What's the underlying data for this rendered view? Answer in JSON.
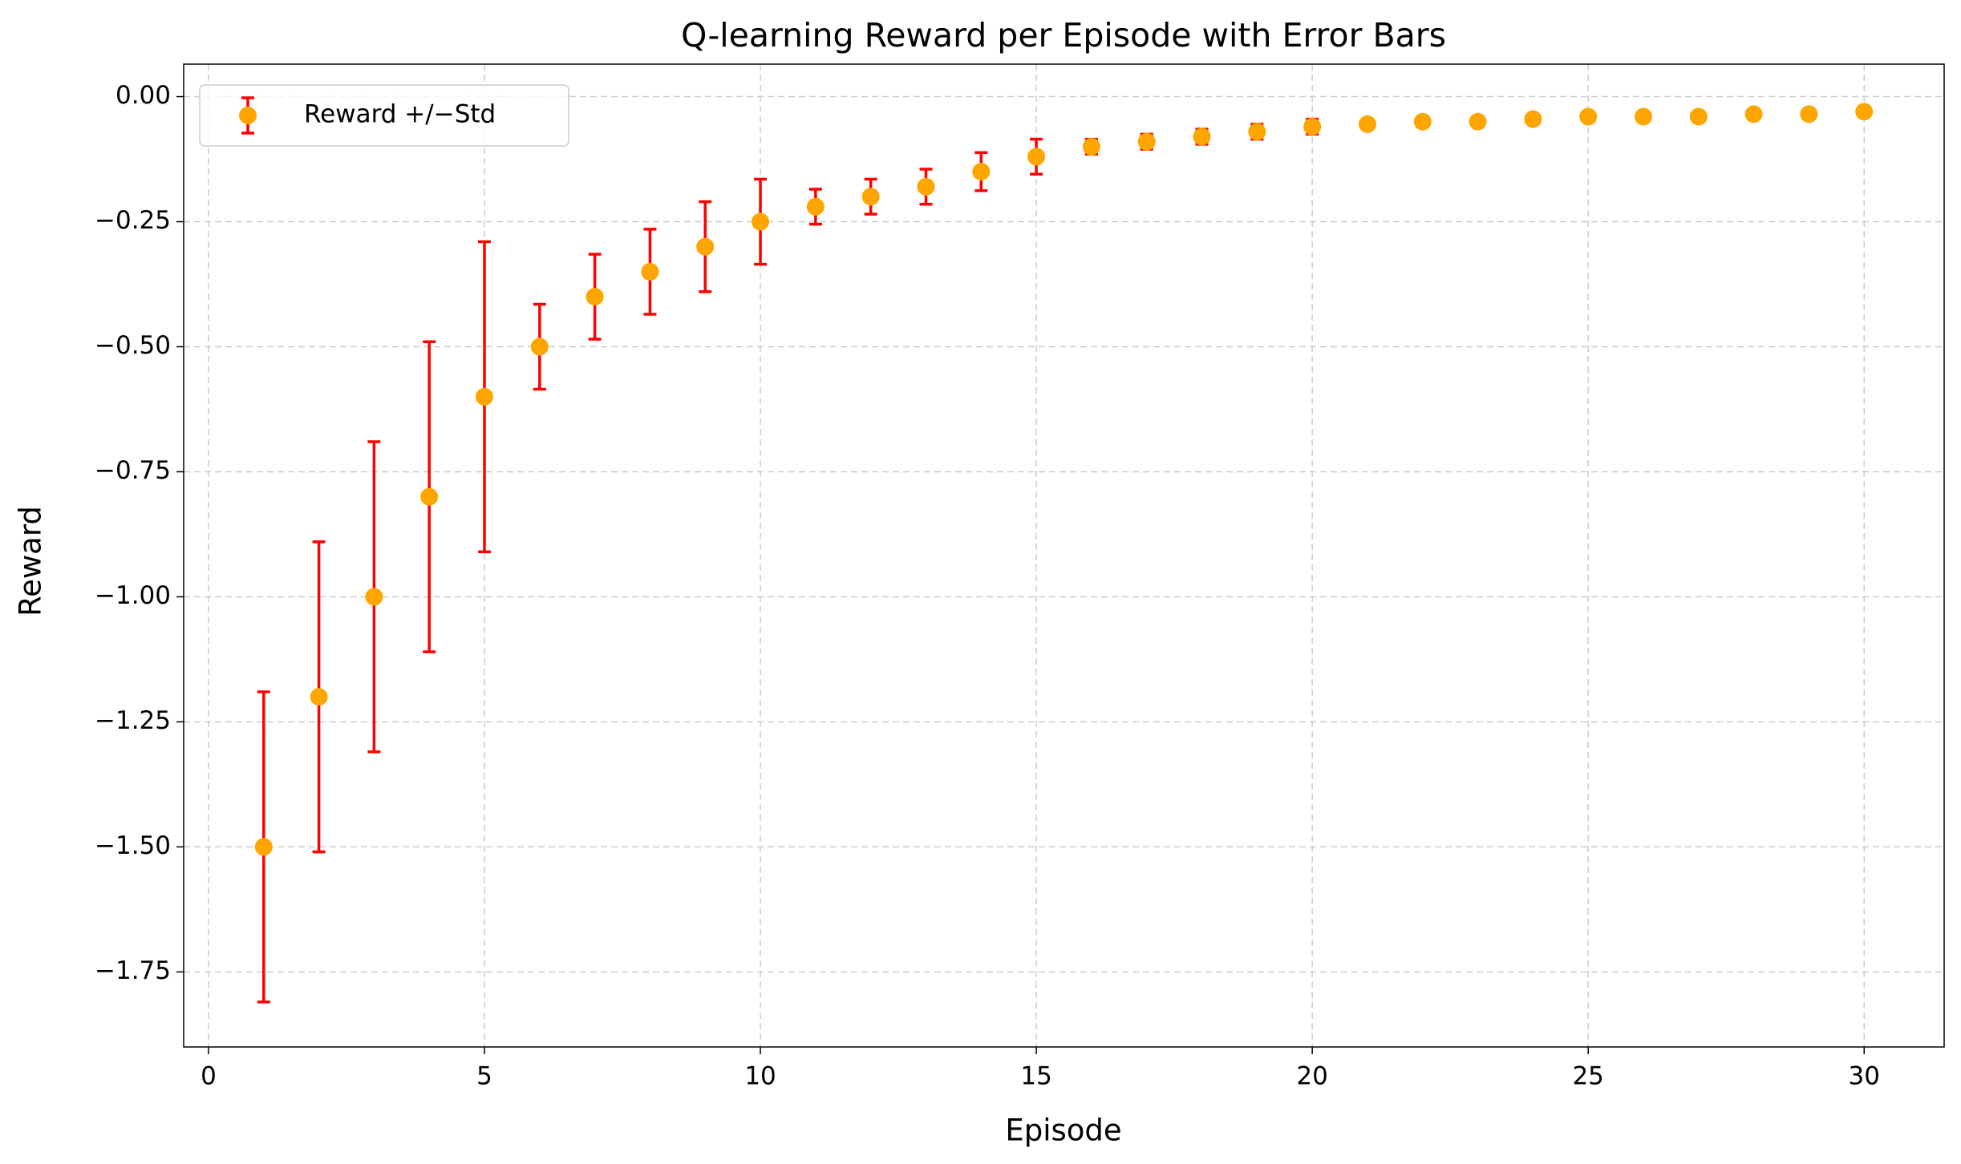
{
  "chart_data": {
    "type": "errorbar",
    "title": "Q-learning Reward per Episode with Error Bars",
    "x_label": "Episode",
    "y_label": "Reward",
    "x": [
      1,
      2,
      3,
      4,
      5,
      6,
      7,
      8,
      9,
      10,
      11,
      12,
      13,
      14,
      15,
      16,
      17,
      18,
      19,
      20,
      21,
      22,
      23,
      24,
      25,
      26,
      27,
      28,
      29,
      30
    ],
    "series": [
      {
        "name": "Reward +/−Std",
        "color": "#ffa500",
        "error_color": "#ff0000",
        "values": [
          -1.5,
          -1.2,
          -1.0,
          -0.8,
          -0.6,
          -0.5,
          -0.4,
          -0.35,
          -0.3,
          -0.25,
          -0.22,
          -0.2,
          -0.18,
          -0.15,
          -0.12,
          -0.1,
          -0.09,
          -0.08,
          -0.07,
          -0.06,
          -0.055,
          -0.05,
          -0.05,
          -0.045,
          -0.04,
          -0.04,
          -0.04,
          -0.035,
          -0.035,
          -0.03
        ],
        "errors": [
          0.31,
          0.31,
          0.31,
          0.31,
          0.31,
          0.085,
          0.085,
          0.085,
          0.09,
          0.085,
          0.035,
          0.035,
          0.035,
          0.038,
          0.035,
          0.015,
          0.015,
          0.015,
          0.015,
          0.015,
          0.005,
          0.005,
          0.005,
          0.005,
          0.005,
          0.005,
          0.005,
          0.005,
          0.005,
          0.005
        ]
      }
    ],
    "xlim": [
      -0.45,
      31.45
    ],
    "ylim": [
      -1.9,
      0.065
    ],
    "xticks": [
      0,
      5,
      10,
      15,
      20,
      25,
      30
    ],
    "yticks": [
      {
        "value": -1.75,
        "label": "−1.75"
      },
      {
        "value": -1.5,
        "label": "−1.50"
      },
      {
        "value": -1.25,
        "label": "−1.25"
      },
      {
        "value": -1.0,
        "label": "−1.00"
      },
      {
        "value": -0.75,
        "label": "−0.75"
      },
      {
        "value": -0.5,
        "label": "−0.50"
      },
      {
        "value": -0.25,
        "label": "−0.25"
      },
      {
        "value": 0,
        "label": "0.00"
      }
    ],
    "grid": true,
    "legend_position": "upper-left"
  }
}
